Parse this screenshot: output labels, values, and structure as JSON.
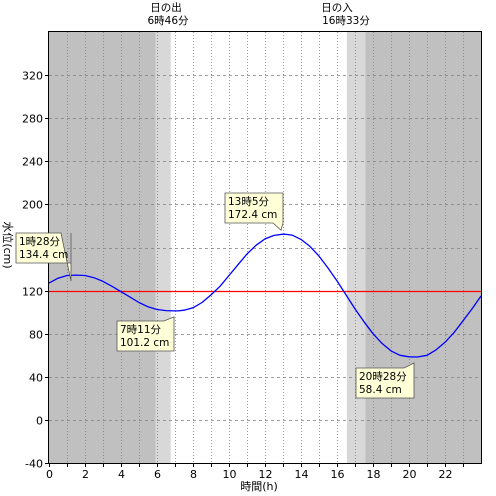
{
  "chart_data": {
    "type": "line",
    "xlabel": "時間(h)",
    "ylabel": "水位(cm)",
    "xlim": [
      0,
      24
    ],
    "ylim": [
      -40,
      360
    ],
    "x_ticks": [
      0,
      2,
      4,
      6,
      8,
      10,
      12,
      14,
      16,
      18,
      20,
      22
    ],
    "y_ticks": [
      -40,
      0,
      40,
      80,
      120,
      160,
      200,
      240,
      280,
      320
    ],
    "reference_line": {
      "y": 120,
      "color": "#ff0000"
    },
    "series": [
      {
        "color": "#0000ff",
        "x": [
          0,
          0.5,
          1,
          1.47,
          2,
          2.5,
          3,
          3.5,
          4,
          4.5,
          5,
          5.5,
          6,
          6.5,
          7,
          7.18,
          7.5,
          8,
          8.5,
          9,
          9.5,
          10,
          10.5,
          11,
          11.5,
          12,
          12.5,
          13,
          13.08,
          13.5,
          14,
          14.5,
          15,
          15.5,
          16,
          16.5,
          17,
          17.5,
          18,
          18.5,
          19,
          19.5,
          20,
          20.47,
          21,
          21.5,
          22,
          22.5,
          23,
          23.5,
          24
        ],
        "y": [
          127,
          131.5,
          134,
          134.4,
          134,
          132,
          128.5,
          124,
          119,
          114,
          109,
          105,
          102.5,
          101.4,
          101.2,
          101.2,
          101.8,
          104,
          109,
          116,
          124,
          134,
          144,
          154,
          162,
          168,
          171.2,
          172.3,
          172.4,
          171.5,
          167.5,
          161,
          152,
          141,
          129,
          116,
          103,
          91,
          80,
          71,
          64,
          60,
          58.6,
          58.4,
          60,
          65,
          72,
          81,
          92,
          103,
          115
        ]
      }
    ],
    "annotations": [
      {
        "time": "1時28分",
        "value": "134.4 cm",
        "x": 1.47,
        "y": 134.4
      },
      {
        "time": "7時11分",
        "value": "101.2 cm",
        "x": 7.18,
        "y": 101.2
      },
      {
        "time": "13時5分",
        "value": "172.4 cm",
        "x": 13.08,
        "y": 172.4
      },
      {
        "time": "20時28分",
        "value": "58.4 cm",
        "x": 20.47,
        "y": 58.4
      }
    ],
    "sunrise": {
      "label": "日の出",
      "time": "6時46分",
      "hour": 6.77
    },
    "sunset": {
      "label": "日の入",
      "time": "16時33分",
      "hour": 16.55
    },
    "night_color": "#c0c0c0",
    "twilight_color": "#d8d8d8",
    "day_color": "#ffffff",
    "grid": true
  }
}
